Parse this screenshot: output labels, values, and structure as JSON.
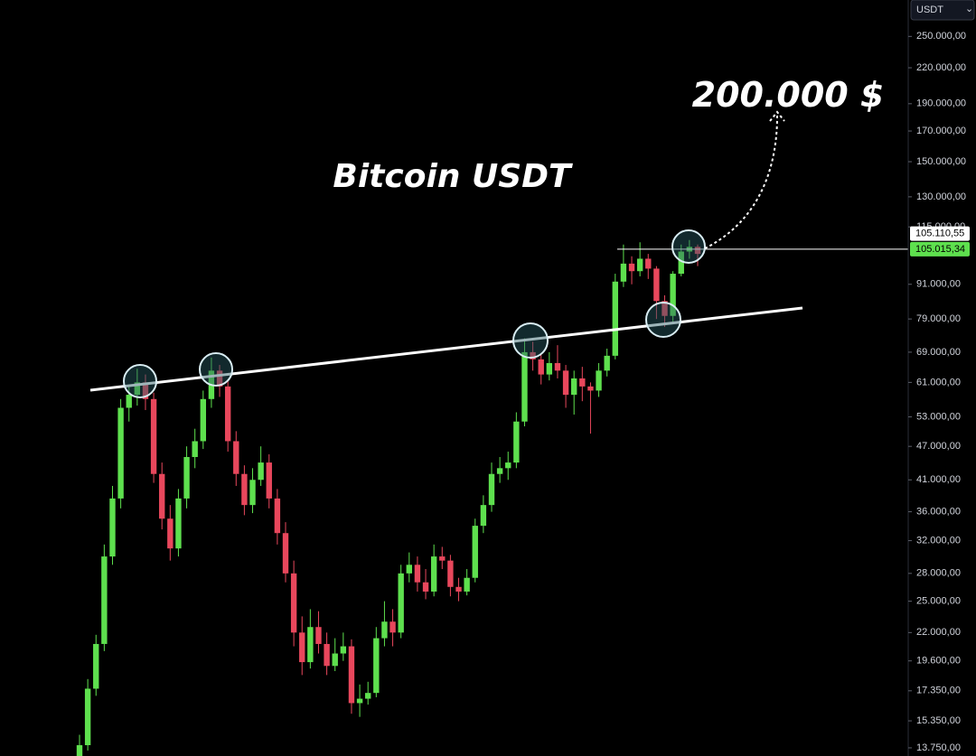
{
  "chart_data": {
    "type": "candlestick",
    "title": "Bitcoin USDT",
    "annotation": "200.000 $",
    "currency": "USDT",
    "log_scale": true,
    "grid": false,
    "up_color": "#5ee04e",
    "down_color": "#e8475c",
    "ylim": [
      13300,
      290000
    ],
    "yticks": [
      {
        "value": 250000,
        "label": "250.000,00"
      },
      {
        "value": 220000,
        "label": "220.000,00"
      },
      {
        "value": 190000,
        "label": "190.000,00"
      },
      {
        "value": 170000,
        "label": "170.000,00"
      },
      {
        "value": 150000,
        "label": "150.000,00"
      },
      {
        "value": 130000,
        "label": "130.000,00"
      },
      {
        "value": 115000,
        "label": "115.000,00"
      },
      {
        "value": 91000,
        "label": "91.000,00"
      },
      {
        "value": 79000,
        "label": "79.000,00"
      },
      {
        "value": 69000,
        "label": "69.000,00"
      },
      {
        "value": 61000,
        "label": "61.000,00"
      },
      {
        "value": 53000,
        "label": "53.000,00"
      },
      {
        "value": 47000,
        "label": "47.000,00"
      },
      {
        "value": 41000,
        "label": "41.000,00"
      },
      {
        "value": 36000,
        "label": "36.000,00"
      },
      {
        "value": 32000,
        "label": "32.000,00"
      },
      {
        "value": 28000,
        "label": "28.000,00"
      },
      {
        "value": 25000,
        "label": "25.000,00"
      },
      {
        "value": 22000,
        "label": "22.000,00"
      },
      {
        "value": 19600,
        "label": "19.600,00"
      },
      {
        "value": 17350,
        "label": "17.350,00"
      },
      {
        "value": 15350,
        "label": "15.350,00"
      },
      {
        "value": 13750,
        "label": "13.750,00"
      }
    ],
    "price_lines": [
      {
        "value": 105110.55,
        "label": "105.110,55"
      },
      {
        "value": 105015.34,
        "label": "105.015,34"
      }
    ],
    "open": [
      13000,
      13900,
      17500,
      21000,
      30000,
      38000,
      55000,
      58000,
      61000,
      57000,
      42000,
      35000,
      31000,
      38000,
      45000,
      48000,
      57000,
      64000,
      60000,
      48000,
      42000,
      37000,
      41000,
      44000,
      38000,
      33000,
      28000,
      22000,
      19500,
      22500,
      21000,
      19200,
      20200,
      20800,
      16500,
      16800,
      17200,
      21500,
      23000,
      22000,
      28000,
      29000,
      27000,
      26000,
      30000,
      29500,
      26500,
      26000,
      27500,
      34000,
      37000,
      42000,
      43000,
      44000,
      52000,
      69000,
      67000,
      63000,
      66000,
      64000,
      58000,
      62000,
      60000,
      59000,
      64000,
      68000,
      92000,
      99000,
      96000,
      101000,
      97000,
      85000,
      80000,
      95000,
      104000,
      106000
    ],
    "high": [
      14500,
      18200,
      21800,
      31500,
      40000,
      57000,
      60500,
      64500,
      63000,
      58500,
      44000,
      37000,
      39500,
      47000,
      50500,
      59000,
      67500,
      65500,
      61500,
      50000,
      43500,
      43000,
      47000,
      45500,
      39500,
      34500,
      29500,
      23500,
      24200,
      24000,
      22000,
      21500,
      22000,
      21400,
      17800,
      18000,
      22500,
      25000,
      24200,
      29000,
      30500,
      30000,
      28500,
      31500,
      31200,
      30200,
      27500,
      28500,
      35000,
      38500,
      44000,
      45000,
      46000,
      54000,
      73000,
      72000,
      68500,
      69000,
      71000,
      65500,
      64000,
      65000,
      61000,
      66000,
      70000,
      95000,
      107000,
      102000,
      108000,
      103000,
      98000,
      87000,
      96000,
      107000,
      109000,
      107000
    ],
    "low": [
      12700,
      13600,
      17000,
      20400,
      29000,
      36500,
      52000,
      55500,
      54500,
      40500,
      33500,
      29500,
      30000,
      36500,
      43000,
      46500,
      55000,
      57500,
      46000,
      40000,
      35500,
      35800,
      40000,
      36500,
      31500,
      27000,
      20800,
      18500,
      19000,
      20200,
      18500,
      18800,
      19600,
      15800,
      15600,
      16400,
      16900,
      20800,
      20800,
      21500,
      27000,
      26000,
      25200,
      25500,
      28500,
      25500,
      25000,
      25600,
      27000,
      33000,
      36000,
      40500,
      41000,
      43000,
      51000,
      64000,
      60500,
      61500,
      62000,
      55000,
      53500,
      56500,
      49500,
      57500,
      62500,
      67000,
      90000,
      91000,
      94000,
      93000,
      79000,
      76500,
      78000,
      94000,
      101000,
      98000
    ],
    "close": [
      13900,
      17500,
      21000,
      30000,
      38000,
      55000,
      58000,
      61000,
      57000,
      42000,
      35000,
      31000,
      38000,
      45000,
      48000,
      57000,
      64000,
      60000,
      48000,
      42000,
      37000,
      41000,
      44000,
      38000,
      33000,
      28000,
      22000,
      19500,
      22500,
      21000,
      19200,
      20200,
      20800,
      16500,
      16800,
      17200,
      21500,
      23000,
      22000,
      28000,
      29000,
      27000,
      26000,
      30000,
      29500,
      26500,
      26000,
      27500,
      34000,
      37000,
      42000,
      43000,
      44000,
      52000,
      69000,
      67000,
      63000,
      66000,
      64000,
      58000,
      62000,
      60000,
      59000,
      64000,
      68000,
      92000,
      99000,
      96000,
      101000,
      97000,
      85000,
      80000,
      95000,
      104000,
      106000,
      103000
    ]
  }
}
